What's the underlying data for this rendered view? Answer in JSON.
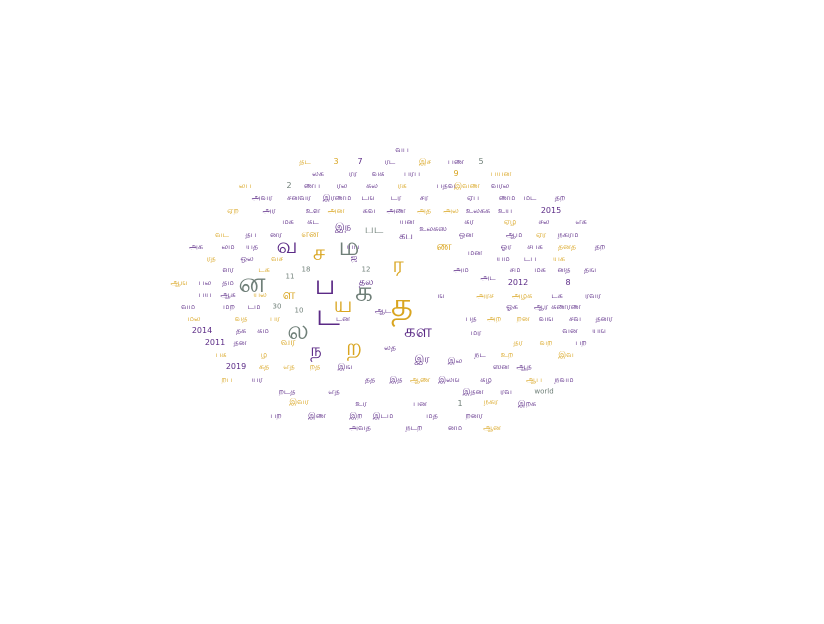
{
  "palette": {
    "purple": "#5b2a86",
    "gold": "#d9a520",
    "gray": "#6f7f78"
  },
  "words": [
    {
      "text": "வப",
      "size": 8,
      "color": "purple"
    },
    {
      "text": "தட",
      "size": 8,
      "color": "gold"
    },
    {
      "text": "3",
      "size": 8,
      "color": "gold"
    },
    {
      "text": "7",
      "size": 8,
      "color": "purple"
    },
    {
      "text": "ரட",
      "size": 8,
      "color": "purple"
    },
    {
      "text": "இச",
      "size": 8,
      "color": "gold"
    },
    {
      "text": "பண",
      "size": 8,
      "color": "purple"
    },
    {
      "text": "5",
      "size": 8,
      "color": "gray"
    },
    {
      "text": "லக",
      "size": 8,
      "color": "purple"
    },
    {
      "text": "ரர",
      "size": 8,
      "color": "purple"
    },
    {
      "text": "வக",
      "size": 8,
      "color": "purple"
    },
    {
      "text": "பரப",
      "size": 8,
      "color": "purple"
    },
    {
      "text": "9",
      "size": 8,
      "color": "gold"
    },
    {
      "text": "பயன",
      "size": 8,
      "color": "gold"
    },
    {
      "text": "லப",
      "size": 8,
      "color": "gold"
    },
    {
      "text": "2",
      "size": 8,
      "color": "gray"
    },
    {
      "text": "ணப",
      "size": 8,
      "color": "purple"
    },
    {
      "text": "ரல",
      "size": 8,
      "color": "purple"
    },
    {
      "text": "கல",
      "size": 8,
      "color": "purple"
    },
    {
      "text": "ரக",
      "size": 8,
      "color": "gold"
    },
    {
      "text": "பதவ",
      "size": 8,
      "color": "purple"
    },
    {
      "text": "இவண",
      "size": 8,
      "color": "gold"
    },
    {
      "text": "வரல",
      "size": 8,
      "color": "purple"
    },
    {
      "text": "அவர",
      "size": 8,
      "color": "purple"
    },
    {
      "text": "சனவர",
      "size": 8,
      "color": "purple"
    },
    {
      "text": "இரணம",
      "size": 8,
      "color": "purple"
    },
    {
      "text": "டங",
      "size": 8,
      "color": "purple"
    },
    {
      "text": "டர",
      "size": 8,
      "color": "purple"
    },
    {
      "text": "சர",
      "size": 8,
      "color": "purple"
    },
    {
      "text": "ஏப",
      "size": 8,
      "color": "purple"
    },
    {
      "text": "ணம",
      "size": 8,
      "color": "purple"
    },
    {
      "text": "மட",
      "size": 8,
      "color": "purple"
    },
    {
      "text": "தற",
      "size": 8,
      "color": "purple"
    },
    {
      "text": "ஏற",
      "size": 8,
      "color": "gold"
    },
    {
      "text": "அர",
      "size": 8,
      "color": "purple"
    },
    {
      "text": "உள",
      "size": 8,
      "color": "purple"
    },
    {
      "text": "அன",
      "size": 8,
      "color": "gold"
    },
    {
      "text": "கவ",
      "size": 8,
      "color": "purple"
    },
    {
      "text": "அண",
      "size": 8,
      "color": "purple"
    },
    {
      "text": "அத",
      "size": 8,
      "color": "gold"
    },
    {
      "text": "அல",
      "size": 8,
      "color": "gold"
    },
    {
      "text": "உலகக",
      "size": 8,
      "color": "purple"
    },
    {
      "text": "உய",
      "size": 8,
      "color": "purple"
    },
    {
      "text": "2015",
      "size": 8,
      "color": "purple"
    },
    {
      "text": "மக",
      "size": 8,
      "color": "purple"
    },
    {
      "text": "கட",
      "size": 8,
      "color": "purple"
    },
    {
      "text": "யன",
      "size": 8,
      "color": "purple"
    },
    {
      "text": "கர",
      "size": 8,
      "color": "purple"
    },
    {
      "text": "ஏழ",
      "size": 8,
      "color": "gold"
    },
    {
      "text": "சல",
      "size": 8,
      "color": "purple"
    },
    {
      "text": "எக",
      "size": 8,
      "color": "purple"
    },
    {
      "text": "வட",
      "size": 8,
      "color": "gold"
    },
    {
      "text": "தப",
      "size": 8,
      "color": "purple"
    },
    {
      "text": "னர",
      "size": 8,
      "color": "purple"
    },
    {
      "text": "என",
      "size": 10,
      "color": "gold"
    },
    {
      "text": "இந",
      "size": 10,
      "color": "purple"
    },
    {
      "text": "பட",
      "size": 12,
      "color": "gray"
    },
    {
      "text": "கப",
      "size": 10,
      "color": "purple"
    },
    {
      "text": "உலகஸ",
      "size": 8,
      "color": "purple"
    },
    {
      "text": "ஒன",
      "size": 8,
      "color": "purple"
    },
    {
      "text": "ஆம",
      "size": 8,
      "color": "purple"
    },
    {
      "text": "ஏர",
      "size": 8,
      "color": "gold"
    },
    {
      "text": "நகரம",
      "size": 8,
      "color": "purple"
    },
    {
      "text": "அக",
      "size": 8,
      "color": "purple"
    },
    {
      "text": "லம",
      "size": 8,
      "color": "purple"
    },
    {
      "text": "யத",
      "size": 8,
      "color": "purple"
    },
    {
      "text": "வ",
      "size": 22,
      "color": "purple"
    },
    {
      "text": "ச",
      "size": 22,
      "color": "gold"
    },
    {
      "text": "ம",
      "size": 26,
      "color": "gray"
    },
    {
      "text": "ர",
      "size": 22,
      "color": "gold"
    },
    {
      "text": "ண",
      "size": 12,
      "color": "gold"
    },
    {
      "text": "மன",
      "size": 8,
      "color": "purple"
    },
    {
      "text": "ஓர",
      "size": 8,
      "color": "purple"
    },
    {
      "text": "சபக",
      "size": 8,
      "color": "purple"
    },
    {
      "text": "தனத",
      "size": 8,
      "color": "gold"
    },
    {
      "text": "தற",
      "size": 8,
      "color": "purple"
    },
    {
      "text": "ரத",
      "size": 8,
      "color": "gold"
    },
    {
      "text": "ஒல",
      "size": 8,
      "color": "purple"
    },
    {
      "text": "வச",
      "size": 8,
      "color": "gold"
    },
    {
      "text": "யப",
      "size": 8,
      "color": "purple"
    },
    {
      "text": "யம",
      "size": 8,
      "color": "purple"
    },
    {
      "text": "டப",
      "size": 8,
      "color": "purple"
    },
    {
      "text": "யக",
      "size": 8,
      "color": "gold"
    },
    {
      "text": "ளர",
      "size": 8,
      "color": "purple"
    },
    {
      "text": "டக",
      "size": 8,
      "color": "gold"
    },
    {
      "text": "11",
      "size": 7,
      "color": "gray"
    },
    {
      "text": "18",
      "size": 7,
      "color": "gray"
    },
    {
      "text": "ஜ",
      "size": 8,
      "color": "purple"
    },
    {
      "text": "12",
      "size": 7,
      "color": "gray"
    },
    {
      "text": "அம",
      "size": 8,
      "color": "purple"
    },
    {
      "text": "சம",
      "size": 8,
      "color": "purple"
    },
    {
      "text": "மக",
      "size": 8,
      "color": "purple"
    },
    {
      "text": "னத",
      "size": 8,
      "color": "purple"
    },
    {
      "text": "தங",
      "size": 8,
      "color": "purple"
    },
    {
      "text": "ஆங",
      "size": 8,
      "color": "gold"
    },
    {
      "text": "பல",
      "size": 8,
      "color": "purple"
    },
    {
      "text": "தம",
      "size": 8,
      "color": "purple"
    },
    {
      "text": "ன",
      "size": 28,
      "color": "gray"
    },
    {
      "text": "ப",
      "size": 28,
      "color": "purple"
    },
    {
      "text": "க",
      "size": 28,
      "color": "gray"
    },
    {
      "text": "த",
      "size": 34,
      "color": "gold"
    },
    {
      "text": "ங",
      "size": 8,
      "color": "purple"
    },
    {
      "text": "தல",
      "size": 10,
      "color": "purple"
    },
    {
      "text": "அட",
      "size": 8,
      "color": "purple"
    },
    {
      "text": "2012",
      "size": 8,
      "color": "purple"
    },
    {
      "text": "8",
      "size": 8,
      "color": "purple"
    },
    {
      "text": "பய",
      "size": 8,
      "color": "purple"
    },
    {
      "text": "ஆக",
      "size": 8,
      "color": "purple"
    },
    {
      "text": "யல",
      "size": 8,
      "color": "gold"
    },
    {
      "text": "ள",
      "size": 14,
      "color": "gold"
    },
    {
      "text": "அரச",
      "size": 8,
      "color": "gold"
    },
    {
      "text": "அழக",
      "size": 8,
      "color": "gold"
    },
    {
      "text": "டக",
      "size": 8,
      "color": "purple"
    },
    {
      "text": "ரவர",
      "size": 8,
      "color": "purple"
    },
    {
      "text": "வம",
      "size": 8,
      "color": "purple"
    },
    {
      "text": "மற",
      "size": 8,
      "color": "purple"
    },
    {
      "text": "டம",
      "size": 8,
      "color": "purple"
    },
    {
      "text": "30",
      "size": 7,
      "color": "gray"
    },
    {
      "text": "ய",
      "size": 22,
      "color": "gold"
    },
    {
      "text": "ட",
      "size": 30,
      "color": "purple"
    },
    {
      "text": "ஆட",
      "size": 8,
      "color": "purple"
    },
    {
      "text": "ஓக",
      "size": 8,
      "color": "purple"
    },
    {
      "text": "ஆர",
      "size": 8,
      "color": "purple"
    },
    {
      "text": "கணரண",
      "size": 8,
      "color": "purple"
    },
    {
      "text": "மல",
      "size": 8,
      "color": "gold"
    },
    {
      "text": "வத",
      "size": 8,
      "color": "gold"
    },
    {
      "text": "பர",
      "size": 8,
      "color": "gold"
    },
    {
      "text": "10",
      "size": 7,
      "color": "gray"
    },
    {
      "text": "டன",
      "size": 8,
      "color": "purple"
    },
    {
      "text": "பத",
      "size": 8,
      "color": "purple"
    },
    {
      "text": "அற",
      "size": 8,
      "color": "gold"
    },
    {
      "text": "றன",
      "size": 8,
      "color": "gold"
    },
    {
      "text": "வங",
      "size": 8,
      "color": "purple"
    },
    {
      "text": "சவ",
      "size": 8,
      "color": "purple"
    },
    {
      "text": "தனர",
      "size": 8,
      "color": "purple"
    },
    {
      "text": "2014",
      "size": 8,
      "color": "purple"
    },
    {
      "text": "தக",
      "size": 8,
      "color": "purple"
    },
    {
      "text": "கம",
      "size": 8,
      "color": "purple"
    },
    {
      "text": "ல",
      "size": 26,
      "color": "gray"
    },
    {
      "text": "கள",
      "size": 18,
      "color": "purple"
    },
    {
      "text": "மர",
      "size": 8,
      "color": "purple"
    },
    {
      "text": "வன",
      "size": 8,
      "color": "purple"
    },
    {
      "text": "யங",
      "size": 8,
      "color": "purple"
    },
    {
      "text": "2011",
      "size": 8,
      "color": "purple"
    },
    {
      "text": "தன",
      "size": 8,
      "color": "purple"
    },
    {
      "text": "வர",
      "size": 10,
      "color": "gold"
    },
    {
      "text": "ந",
      "size": 18,
      "color": "purple"
    },
    {
      "text": "ற",
      "size": 24,
      "color": "gold"
    },
    {
      "text": "லத",
      "size": 8,
      "color": "purple"
    },
    {
      "text": "தர",
      "size": 8,
      "color": "gold"
    },
    {
      "text": "வற",
      "size": 8,
      "color": "gold"
    },
    {
      "text": "பற",
      "size": 8,
      "color": "purple"
    },
    {
      "text": "பக",
      "size": 8,
      "color": "gold"
    },
    {
      "text": "ழ",
      "size": 8,
      "color": "gold"
    },
    {
      "text": "இர",
      "size": 10,
      "color": "purple"
    },
    {
      "text": "இல",
      "size": 8,
      "color": "purple"
    },
    {
      "text": "நட",
      "size": 8,
      "color": "purple"
    },
    {
      "text": "உற",
      "size": 8,
      "color": "gold"
    },
    {
      "text": "இவ",
      "size": 8,
      "color": "gold"
    },
    {
      "text": "2019",
      "size": 8,
      "color": "purple"
    },
    {
      "text": "கத",
      "size": 8,
      "color": "gold"
    },
    {
      "text": "எத",
      "size": 8,
      "color": "gold"
    },
    {
      "text": "றத",
      "size": 8,
      "color": "gold"
    },
    {
      "text": "இங",
      "size": 8,
      "color": "purple"
    },
    {
      "text": "ஸன",
      "size": 8,
      "color": "purple"
    },
    {
      "text": "ஆத",
      "size": 8,
      "color": "purple"
    },
    {
      "text": "றப",
      "size": 8,
      "color": "gold"
    },
    {
      "text": "யர",
      "size": 8,
      "color": "purple"
    },
    {
      "text": "தத",
      "size": 8,
      "color": "purple"
    },
    {
      "text": "இத",
      "size": 8,
      "color": "purple"
    },
    {
      "text": "ஆண",
      "size": 8,
      "color": "gold"
    },
    {
      "text": "இலங",
      "size": 8,
      "color": "purple"
    },
    {
      "text": "கழ",
      "size": 8,
      "color": "purple"
    },
    {
      "text": "ஆப",
      "size": 8,
      "color": "gold"
    },
    {
      "text": "நவம",
      "size": 8,
      "color": "purple"
    },
    {
      "text": "றடத",
      "size": 8,
      "color": "purple"
    },
    {
      "text": "எத",
      "size": 8,
      "color": "purple"
    },
    {
      "text": "இதன",
      "size": 8,
      "color": "purple"
    },
    {
      "text": "ரவ",
      "size": 8,
      "color": "purple"
    },
    {
      "text": "world",
      "size": 7,
      "color": "gray"
    },
    {
      "text": "இவர",
      "size": 8,
      "color": "gold"
    },
    {
      "text": "உர",
      "size": 8,
      "color": "purple"
    },
    {
      "text": "பன",
      "size": 8,
      "color": "purple"
    },
    {
      "text": "1",
      "size": 8,
      "color": "gray"
    },
    {
      "text": "நகர",
      "size": 8,
      "color": "gold"
    },
    {
      "text": "இறக",
      "size": 8,
      "color": "purple"
    },
    {
      "text": "பற",
      "size": 8,
      "color": "purple"
    },
    {
      "text": "இண",
      "size": 8,
      "color": "purple"
    },
    {
      "text": "இற",
      "size": 8,
      "color": "purple"
    },
    {
      "text": "இடம",
      "size": 8,
      "color": "purple"
    },
    {
      "text": "மத",
      "size": 8,
      "color": "purple"
    },
    {
      "text": "றனர",
      "size": 8,
      "color": "purple"
    },
    {
      "text": "அவத",
      "size": 8,
      "color": "purple"
    },
    {
      "text": "நடற",
      "size": 8,
      "color": "purple"
    },
    {
      "text": "னம",
      "size": 8,
      "color": "purple"
    },
    {
      "text": "ஆன",
      "size": 8,
      "color": "gold"
    }
  ]
}
